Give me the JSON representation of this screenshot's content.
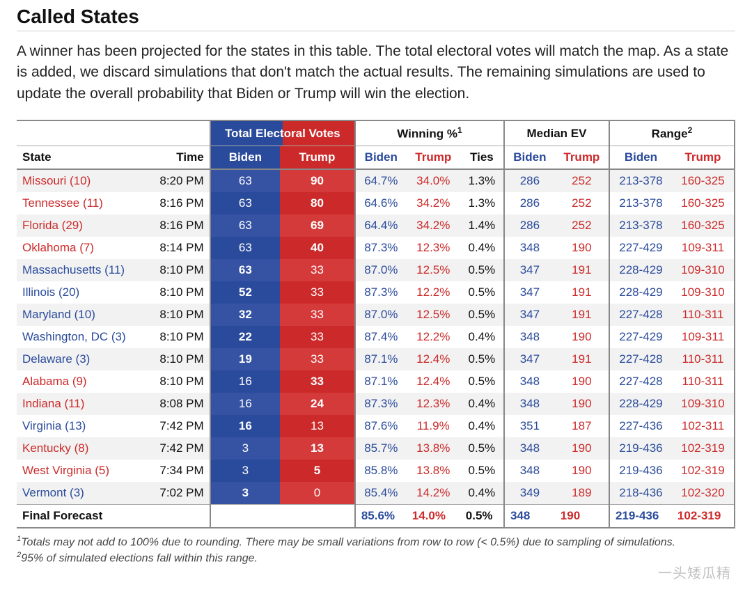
{
  "title": "Called States",
  "description": "A winner has been projected for the states in this table. The total electoral votes will match the map. As a state is added, we discard simulations that don't match the actual results. The remaining simulations are used to update the overall probability that Biden or Trump will win the election.",
  "colors": {
    "biden": "#2a4b9b",
    "trump": "#cc2a2a",
    "biden_bg_odd": "#3552a3",
    "biden_bg_even": "#2a4b9b",
    "trump_bg_odd": "#d43a3a",
    "trump_bg_even": "#cc2a2a",
    "header_biden_bg": "#2a4b9b",
    "header_trump_bg": "#cc2a2a",
    "text": "#111111",
    "border": "#888888"
  },
  "group_headers": {
    "blank": "",
    "ev": "Total Electoral Votes",
    "win": "Winning %",
    "win_sup": "1",
    "med": "Median EV",
    "range": "Range",
    "range_sup": "2"
  },
  "sub_headers": {
    "state": "State",
    "time": "Time",
    "biden": "Biden",
    "trump": "Trump",
    "ties": "Ties"
  },
  "rows": [
    {
      "winner": "t",
      "state": "Missouri (10)",
      "time": "8:20 PM",
      "evB": "63",
      "evT": "90",
      "winB": "64.7%",
      "winT": "34.0%",
      "ties": "1.3%",
      "medB": "286",
      "medT": "252",
      "rngB": "213-378",
      "rngT": "160-325"
    },
    {
      "winner": "t",
      "state": "Tennessee (11)",
      "time": "8:16 PM",
      "evB": "63",
      "evT": "80",
      "winB": "64.6%",
      "winT": "34.2%",
      "ties": "1.3%",
      "medB": "286",
      "medT": "252",
      "rngB": "213-378",
      "rngT": "160-325"
    },
    {
      "winner": "t",
      "state": "Florida (29)",
      "time": "8:16 PM",
      "evB": "63",
      "evT": "69",
      "winB": "64.4%",
      "winT": "34.2%",
      "ties": "1.4%",
      "medB": "286",
      "medT": "252",
      "rngB": "213-378",
      "rngT": "160-325"
    },
    {
      "winner": "t",
      "state": "Oklahoma (7)",
      "time": "8:14 PM",
      "evB": "63",
      "evT": "40",
      "winB": "87.3%",
      "winT": "12.3%",
      "ties": "0.4%",
      "medB": "348",
      "medT": "190",
      "rngB": "227-429",
      "rngT": "109-311"
    },
    {
      "winner": "b",
      "state": "Massachusetts (11)",
      "time": "8:10 PM",
      "evB": "63",
      "evT": "33",
      "winB": "87.0%",
      "winT": "12.5%",
      "ties": "0.5%",
      "medB": "347",
      "medT": "191",
      "rngB": "228-429",
      "rngT": "109-310"
    },
    {
      "winner": "b",
      "state": "Illinois (20)",
      "time": "8:10 PM",
      "evB": "52",
      "evT": "33",
      "winB": "87.3%",
      "winT": "12.2%",
      "ties": "0.5%",
      "medB": "347",
      "medT": "191",
      "rngB": "228-429",
      "rngT": "109-310"
    },
    {
      "winner": "b",
      "state": "Maryland (10)",
      "time": "8:10 PM",
      "evB": "32",
      "evT": "33",
      "winB": "87.0%",
      "winT": "12.5%",
      "ties": "0.5%",
      "medB": "347",
      "medT": "191",
      "rngB": "227-428",
      "rngT": "110-311"
    },
    {
      "winner": "b",
      "state": "Washington, DC (3)",
      "time": "8:10 PM",
      "evB": "22",
      "evT": "33",
      "winB": "87.4%",
      "winT": "12.2%",
      "ties": "0.4%",
      "medB": "348",
      "medT": "190",
      "rngB": "227-429",
      "rngT": "109-311"
    },
    {
      "winner": "b",
      "state": "Delaware (3)",
      "time": "8:10 PM",
      "evB": "19",
      "evT": "33",
      "winB": "87.1%",
      "winT": "12.4%",
      "ties": "0.5%",
      "medB": "347",
      "medT": "191",
      "rngB": "227-428",
      "rngT": "110-311"
    },
    {
      "winner": "t",
      "state": "Alabama (9)",
      "time": "8:10 PM",
      "evB": "16",
      "evT": "33",
      "winB": "87.1%",
      "winT": "12.4%",
      "ties": "0.5%",
      "medB": "348",
      "medT": "190",
      "rngB": "227-428",
      "rngT": "110-311"
    },
    {
      "winner": "t",
      "state": "Indiana (11)",
      "time": "8:08 PM",
      "evB": "16",
      "evT": "24",
      "winB": "87.3%",
      "winT": "12.3%",
      "ties": "0.4%",
      "medB": "348",
      "medT": "190",
      "rngB": "228-429",
      "rngT": "109-310"
    },
    {
      "winner": "b",
      "state": "Virginia (13)",
      "time": "7:42 PM",
      "evB": "16",
      "evT": "13",
      "winB": "87.6%",
      "winT": "11.9%",
      "ties": "0.4%",
      "medB": "351",
      "medT": "187",
      "rngB": "227-436",
      "rngT": "102-311"
    },
    {
      "winner": "t",
      "state": "Kentucky (8)",
      "time": "7:42 PM",
      "evB": "3",
      "evT": "13",
      "winB": "85.7%",
      "winT": "13.8%",
      "ties": "0.5%",
      "medB": "348",
      "medT": "190",
      "rngB": "219-436",
      "rngT": "102-319"
    },
    {
      "winner": "t",
      "state": "West Virginia (5)",
      "time": "7:34 PM",
      "evB": "3",
      "evT": "5",
      "winB": "85.8%",
      "winT": "13.8%",
      "ties": "0.5%",
      "medB": "348",
      "medT": "190",
      "rngB": "219-436",
      "rngT": "102-319"
    },
    {
      "winner": "b",
      "state": "Vermont (3)",
      "time": "7:02 PM",
      "evB": "3",
      "evT": "0",
      "winB": "85.4%",
      "winT": "14.2%",
      "ties": "0.4%",
      "medB": "349",
      "medT": "189",
      "rngB": "218-436",
      "rngT": "102-320"
    }
  ],
  "final": {
    "label": "Final Forecast",
    "winB": "85.6%",
    "winT": "14.0%",
    "ties": "0.5%",
    "medB": "348",
    "medT": "190",
    "rngB": "219-436",
    "rngT": "102-319"
  },
  "footnotes": {
    "f1_num": "1",
    "f1": "Totals may not add to 100% due to rounding. There may be small variations from row to row (< 0.5%) due to sampling of simulations.",
    "f2_num": "2",
    "f2": "95% of simulated elections fall within this range."
  },
  "watermark": "一头矮瓜精"
}
